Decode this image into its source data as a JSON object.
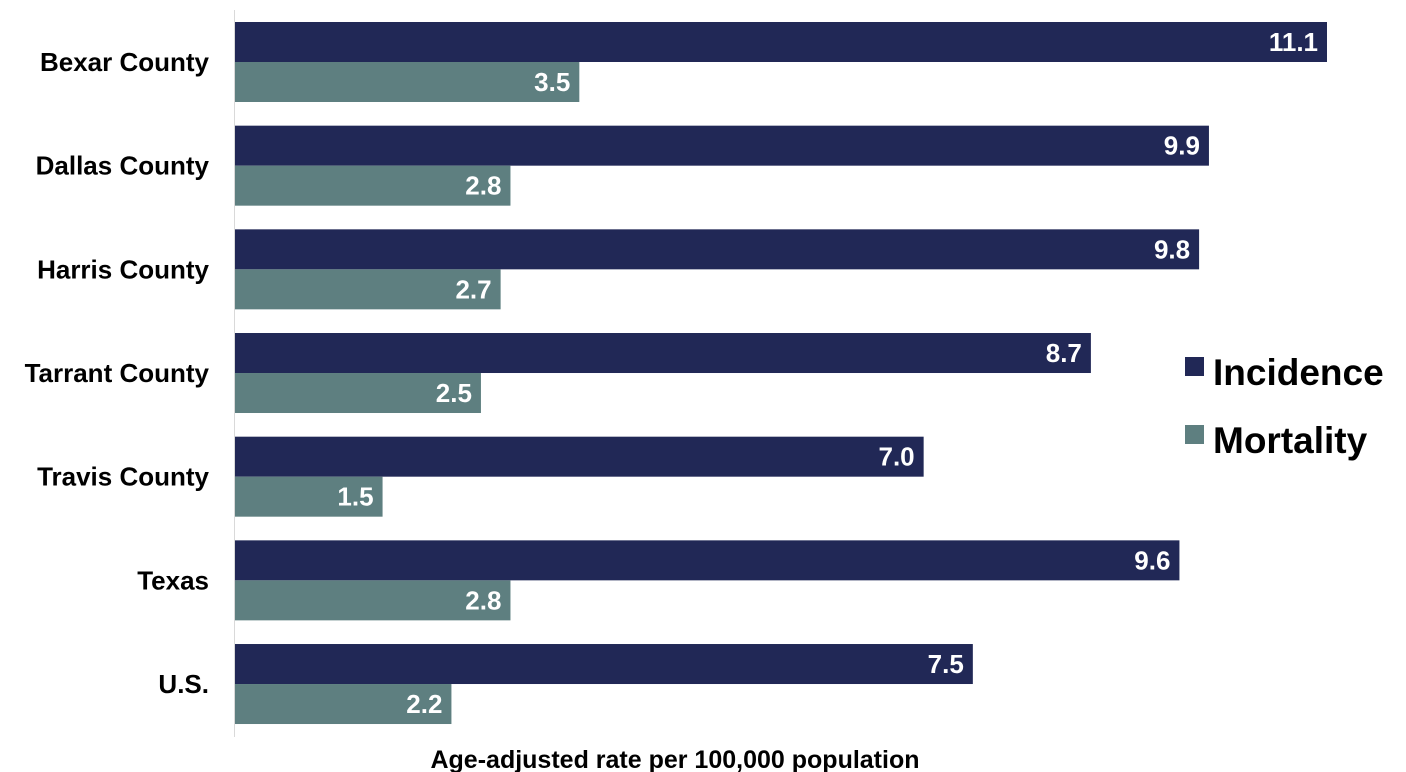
{
  "chart_data": {
    "type": "bar",
    "orientation": "horizontal",
    "categories": [
      "Bexar County",
      "Dallas County",
      "Harris County",
      "Tarrant County",
      "Travis County",
      "Texas",
      "U.S."
    ],
    "series": [
      {
        "name": "Incidence",
        "color": "#212856",
        "values": [
          11.1,
          9.9,
          9.8,
          8.7,
          7.0,
          9.6,
          7.5
        ],
        "labels": [
          "11.1",
          "9.9",
          "9.8",
          "8.7",
          "7.0",
          "9.6",
          "7.5"
        ]
      },
      {
        "name": "Mortality",
        "color": "#5e7f80",
        "values": [
          3.5,
          2.8,
          2.7,
          2.5,
          1.5,
          2.8,
          2.2
        ],
        "labels": [
          "3.5",
          "2.8",
          "2.7",
          "2.5",
          "1.5",
          "2.8",
          "2.2"
        ]
      }
    ],
    "xlabel": "Age-adjusted rate per 100,000 population",
    "ylabel": "",
    "xlim": [
      0,
      11.1
    ],
    "grid": false,
    "legend_position": "right"
  }
}
